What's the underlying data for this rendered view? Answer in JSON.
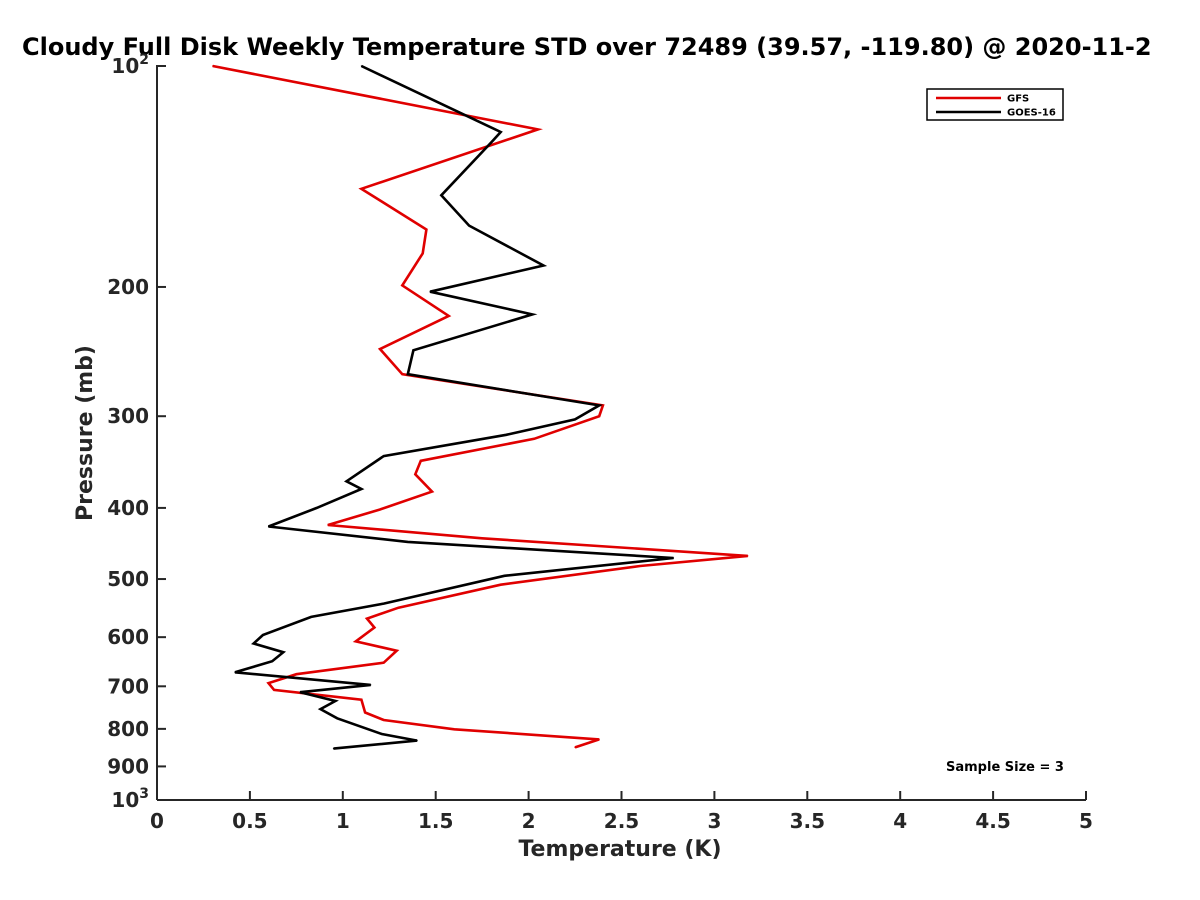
{
  "chart_data": {
    "type": "line",
    "title": "Cloudy Full Disk Weekly Temperature STD over 72489 (39.57, -119.80) @ 2020-11-2",
    "xlabel": "Temperature (K)",
    "ylabel": "Pressure (mb)",
    "xlim": [
      0,
      5
    ],
    "ylim": [
      100,
      1000
    ],
    "yscale": "log",
    "y_reversed": true,
    "grid": false,
    "legend_position": "top-right",
    "x_ticks": [
      "0",
      "0.5",
      "1",
      "1.5",
      "2",
      "2.5",
      "3",
      "3.5",
      "4",
      "4.5",
      "5"
    ],
    "x_tick_values": [
      0,
      0.5,
      1,
      1.5,
      2,
      2.5,
      3,
      3.5,
      4,
      4.5,
      5
    ],
    "y_ticks": [
      {
        "value": 100,
        "base": "10",
        "exp": "2"
      },
      {
        "value": 200,
        "label": "200"
      },
      {
        "value": 300,
        "label": "300"
      },
      {
        "value": 400,
        "label": "400"
      },
      {
        "value": 500,
        "label": "500"
      },
      {
        "value": 600,
        "label": "600"
      },
      {
        "value": 700,
        "label": "700"
      },
      {
        "value": 800,
        "label": "800"
      },
      {
        "value": 900,
        "label": "900"
      },
      {
        "value": 1000,
        "base": "10",
        "exp": "3"
      }
    ],
    "annotation": "Sample Size = 3",
    "series": [
      {
        "name": "GFS",
        "color": "#e00000",
        "x": [
          0.3,
          2.05,
          1.1,
          1.45,
          1.43,
          1.32,
          1.57,
          1.2,
          1.32,
          2.4,
          2.38,
          2.03,
          1.42,
          1.39,
          1.48,
          1.2,
          0.92,
          1.75,
          3.18,
          2.6,
          1.85,
          1.3,
          1.13,
          1.17,
          1.07,
          1.29,
          1.22,
          0.75,
          0.6,
          0.63,
          1.1,
          1.12,
          1.22,
          1.6,
          2.38,
          2.25
        ],
        "y": [
          100,
          122,
          147,
          167,
          180,
          199,
          219,
          243,
          263,
          290,
          300,
          322,
          345,
          360,
          380,
          402,
          422,
          440,
          465,
          480,
          509,
          547,
          566,
          582,
          608,
          626,
          650,
          674,
          693,
          708,
          730,
          760,
          778,
          801,
          827,
          848
        ]
      },
      {
        "name": "GOES-16",
        "color": "#000000",
        "x": [
          1.1,
          1.85,
          1.8,
          1.53,
          1.68,
          2.08,
          1.47,
          2.02,
          1.38,
          1.35,
          2.38,
          2.25,
          1.88,
          1.22,
          1.02,
          1.1,
          0.86,
          0.6,
          1.35,
          2.78,
          1.87,
          1.22,
          0.83,
          0.57,
          0.52,
          0.68,
          0.62,
          0.42,
          1.15,
          0.77,
          0.96,
          0.88,
          0.97,
          1.21,
          1.4,
          0.95
        ],
        "y": [
          100,
          123,
          127,
          150,
          165,
          187,
          203,
          218,
          244,
          263,
          290,
          303,
          318,
          340,
          368,
          377,
          400,
          424,
          445,
          468,
          495,
          540,
          563,
          596,
          612,
          629,
          647,
          670,
          697,
          713,
          733,
          752,
          774,
          813,
          830,
          851
        ]
      }
    ]
  }
}
